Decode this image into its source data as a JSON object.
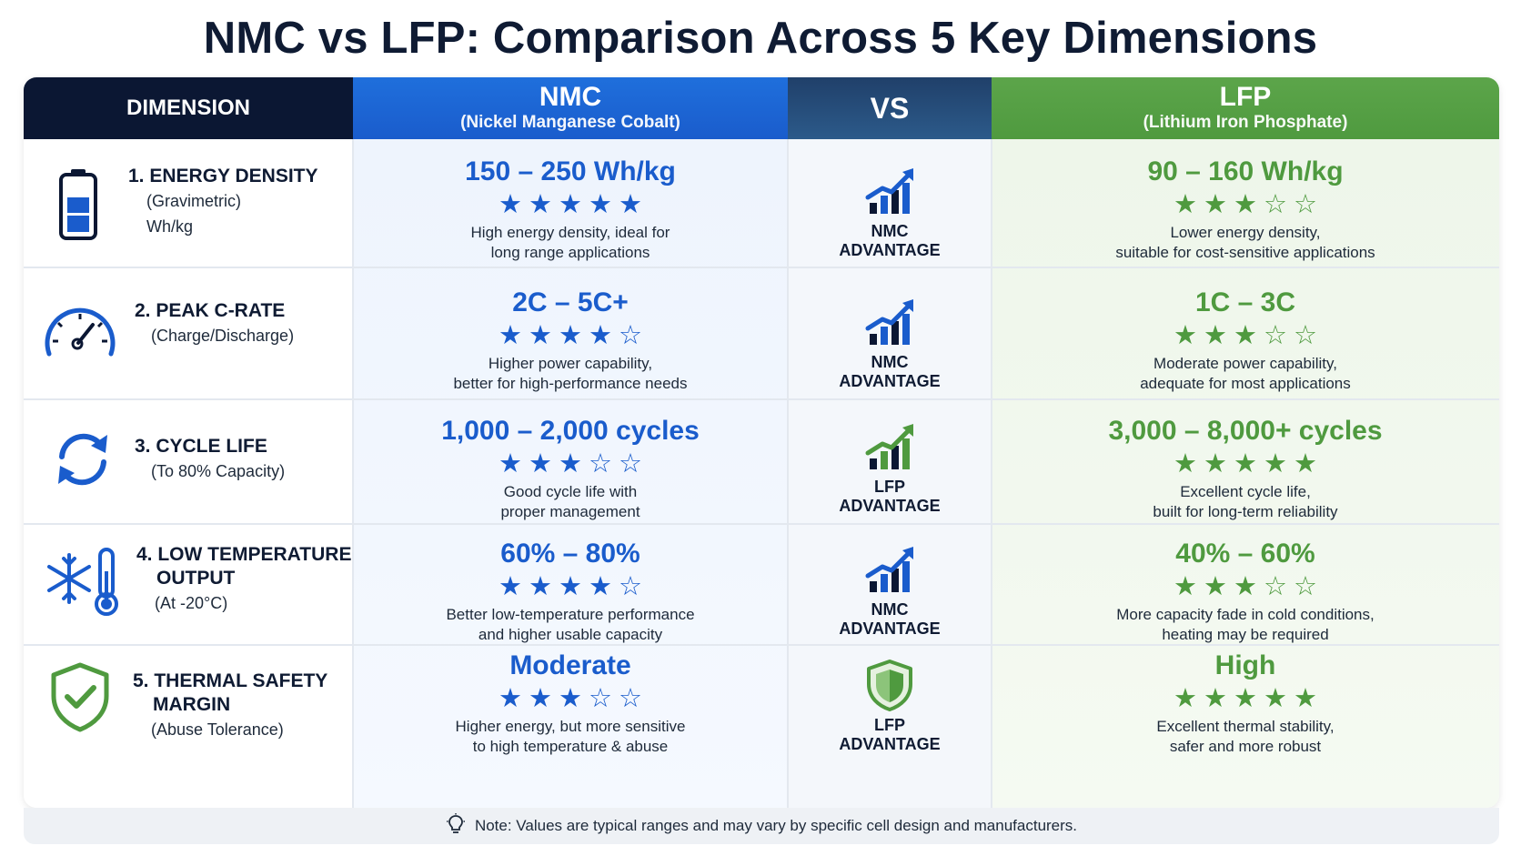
{
  "title": "NMC vs LFP: Comparison Across 5 Key Dimensions",
  "header": {
    "dimension": "DIMENSION",
    "nmc_name": "NMC",
    "nmc_full": "(Nickel Manganese Cobalt)",
    "vs": "VS",
    "lfp_name": "LFP",
    "lfp_full": "(Lithium Iron Phosphate)"
  },
  "colors": {
    "nmc": "#1a5ccc",
    "lfp": "#4f9a3f",
    "dark": "#0b1733"
  },
  "rows": [
    {
      "name": "1. ENERGY DENSITY",
      "sub1": "(Gravimetric)",
      "sub2": "Wh/kg",
      "icon": "battery-icon",
      "nmc_value": "150 – 250 Wh/kg",
      "nmc_stars": 5,
      "nmc_desc1": "High energy density, ideal for",
      "nmc_desc2": "long range applications",
      "advantage_line1": "NMC",
      "advantage_line2": "ADVANTAGE",
      "advantage_icon": "bar-chart-up-icon",
      "advantage_color": "nmc",
      "lfp_value": "90 – 160 Wh/kg",
      "lfp_stars": 3,
      "lfp_desc1": "Lower energy density,",
      "lfp_desc2": "suitable for cost-sensitive applications"
    },
    {
      "name": "2. PEAK C-RATE",
      "sub1": "(Charge/Discharge)",
      "sub2": "",
      "icon": "gauge-icon",
      "nmc_value": "2C – 5C+",
      "nmc_stars": 4,
      "nmc_desc1": "Higher power capability,",
      "nmc_desc2": "better for high-performance needs",
      "advantage_line1": "NMC",
      "advantage_line2": "ADVANTAGE",
      "advantage_icon": "bar-chart-up-icon",
      "advantage_color": "nmc",
      "lfp_value": "1C – 3C",
      "lfp_stars": 3,
      "lfp_desc1": "Moderate power capability,",
      "lfp_desc2": "adequate for most applications"
    },
    {
      "name": "3. CYCLE LIFE",
      "sub1": "(To 80% Capacity)",
      "sub2": "",
      "icon": "cycle-arrows-icon",
      "nmc_value": "1,000 – 2,000 cycles",
      "nmc_stars": 3,
      "nmc_desc1": "Good cycle life with",
      "nmc_desc2": "proper management",
      "advantage_line1": "LFP",
      "advantage_line2": "ADVANTAGE",
      "advantage_icon": "bar-chart-up-icon",
      "advantage_color": "lfp",
      "lfp_value": "3,000 – 8,000+ cycles",
      "lfp_stars": 5,
      "lfp_desc1": "Excellent cycle life,",
      "lfp_desc2": "built for long-term reliability"
    },
    {
      "name": "4. LOW TEMPERATURE",
      "name2": "OUTPUT",
      "sub1": "(At -20°C)",
      "sub2": "",
      "icon": "snowflake-thermometer-icon",
      "nmc_value": "60% – 80%",
      "nmc_stars": 4,
      "nmc_desc1": "Better low-temperature performance",
      "nmc_desc2": "and higher usable capacity",
      "advantage_line1": "NMC",
      "advantage_line2": "ADVANTAGE",
      "advantage_icon": "bar-chart-up-icon",
      "advantage_color": "nmc",
      "lfp_value": "40% – 60%",
      "lfp_stars": 3,
      "lfp_desc1": "More capacity fade in cold conditions,",
      "lfp_desc2": "heating may be required"
    },
    {
      "name": "5. THERMAL SAFETY",
      "name2": "MARGIN",
      "sub1": "(Abuse Tolerance)",
      "sub2": "",
      "icon": "shield-check-icon",
      "nmc_value": "Moderate",
      "nmc_stars": 3,
      "nmc_desc1": "Higher energy, but more sensitive",
      "nmc_desc2": "to high temperature & abuse",
      "advantage_line1": "LFP",
      "advantage_line2": "ADVANTAGE",
      "advantage_icon": "shield-icon",
      "advantage_color": "lfp",
      "lfp_value": "High",
      "lfp_stars": 5,
      "lfp_desc1": "Excellent thermal stability,",
      "lfp_desc2": "safer and more robust"
    }
  ],
  "note": {
    "icon": "lightbulb-icon",
    "text": "Note:  Values are typical ranges and may vary by specific cell design and manufacturers."
  }
}
